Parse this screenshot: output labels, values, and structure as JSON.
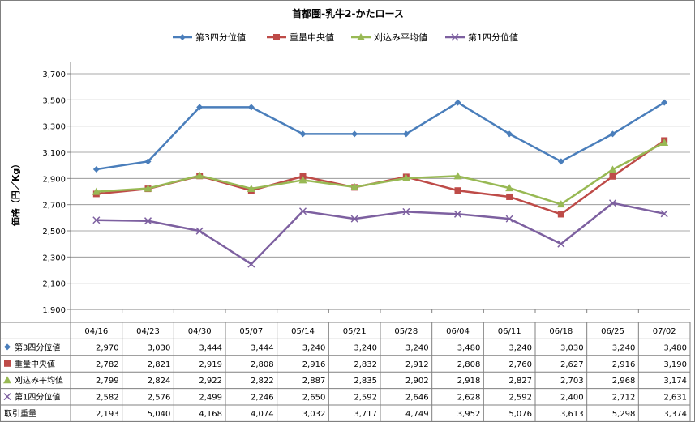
{
  "chart_data": {
    "type": "line",
    "title": "首都圏-乳牛2-かたロース",
    "ylabel": "価格（円／Kg）",
    "ylim": [
      1900,
      3700
    ],
    "ystep": 200,
    "ytick_labels": [
      "1,900",
      "2,100",
      "2,300",
      "2,500",
      "2,700",
      "2,900",
      "3,100",
      "3,300",
      "3,500",
      "3,700"
    ],
    "categories": [
      "04/16",
      "04/23",
      "04/30",
      "05/07",
      "05/14",
      "05/21",
      "05/28",
      "06/04",
      "06/11",
      "06/18",
      "06/25",
      "07/02"
    ],
    "grid": true,
    "legend_position": "top",
    "series": [
      {
        "name": "第3四分位値",
        "color": "#4A7EBB",
        "marker": "diamond",
        "values": [
          2970,
          3030,
          3444,
          3444,
          3240,
          3240,
          3240,
          3480,
          3240,
          3030,
          3240,
          3480
        ],
        "labels": [
          "2,970",
          "3,030",
          "3,444",
          "3,444",
          "3,240",
          "3,240",
          "3,240",
          "3,480",
          "3,240",
          "3,030",
          "3,240",
          "3,480"
        ]
      },
      {
        "name": "重量中央値",
        "color": "#BE4B48",
        "marker": "square",
        "values": [
          2782,
          2821,
          2919,
          2808,
          2916,
          2832,
          2912,
          2808,
          2760,
          2627,
          2916,
          3190
        ],
        "labels": [
          "2,782",
          "2,821",
          "2,919",
          "2,808",
          "2,916",
          "2,832",
          "2,912",
          "2,808",
          "2,760",
          "2,627",
          "2,916",
          "3,190"
        ]
      },
      {
        "name": "刈込み平均値",
        "color": "#98B954",
        "marker": "triangle",
        "values": [
          2799,
          2824,
          2922,
          2822,
          2887,
          2835,
          2902,
          2918,
          2827,
          2703,
          2968,
          3174
        ],
        "labels": [
          "2,799",
          "2,824",
          "2,922",
          "2,822",
          "2,887",
          "2,835",
          "2,902",
          "2,918",
          "2,827",
          "2,703",
          "2,968",
          "3,174"
        ]
      },
      {
        "name": "第1四分位値",
        "color": "#7D60A0",
        "marker": "x",
        "values": [
          2582,
          2576,
          2499,
          2246,
          2650,
          2592,
          2646,
          2628,
          2592,
          2400,
          2712,
          2631
        ],
        "labels": [
          "2,582",
          "2,576",
          "2,499",
          "2,246",
          "2,650",
          "2,592",
          "2,646",
          "2,628",
          "2,592",
          "2,400",
          "2,712",
          "2,631"
        ]
      }
    ],
    "table_extra_row": {
      "name": "取引重量",
      "labels": [
        "2,193",
        "5,040",
        "4,168",
        "4,074",
        "3,032",
        "3,717",
        "4,749",
        "3,952",
        "5,076",
        "3,613",
        "5,298",
        "3,374"
      ]
    }
  }
}
